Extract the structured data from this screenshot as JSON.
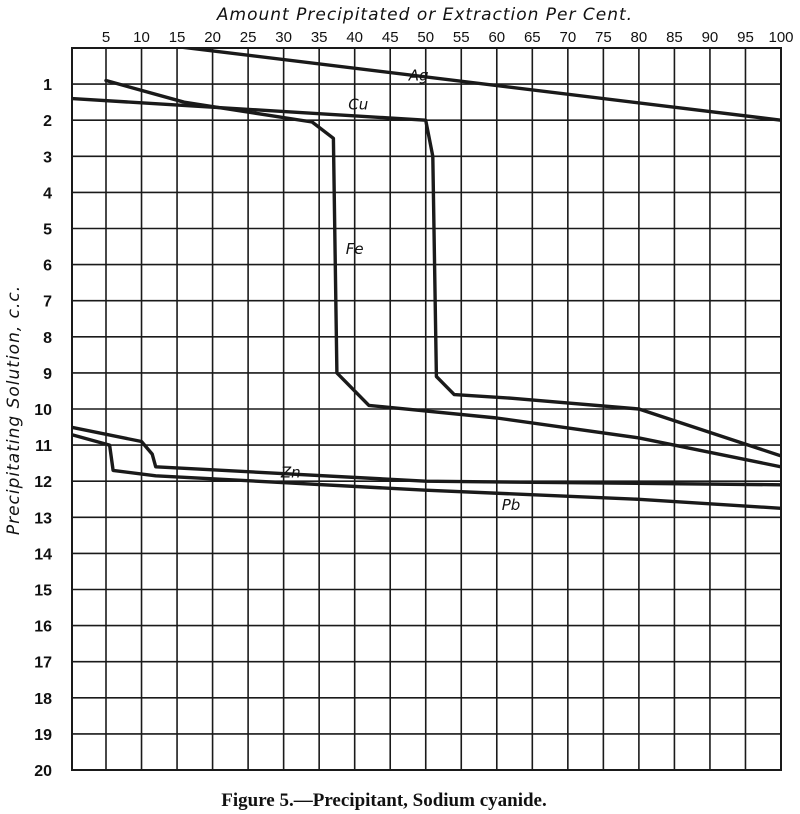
{
  "chart_data": {
    "type": "line",
    "title": "",
    "xlabel": "Amount Precipitated or Extraction Per Cent.",
    "ylabel": "Precipitating Solution, c.c.",
    "caption": "Figure 5.—Precipitant, Sodium cyanide.",
    "x_ticks": [
      5,
      10,
      15,
      20,
      25,
      30,
      35,
      40,
      45,
      50,
      55,
      60,
      65,
      70,
      75,
      80,
      85,
      90,
      95,
      100
    ],
    "y_ticks": [
      1,
      2,
      3,
      4,
      5,
      6,
      7,
      8,
      9,
      10,
      11,
      12,
      13,
      14,
      15,
      16,
      17,
      18,
      19,
      20
    ],
    "xlim": [
      5,
      100
    ],
    "ylim": [
      0,
      20
    ],
    "x_axis_position": "top",
    "y_inverted": true,
    "grid": true,
    "series": [
      {
        "name": "Ag",
        "label_at": [
          49,
          0.9
        ],
        "points": [
          [
            0,
            -0.4
          ],
          [
            100,
            2.0
          ]
        ]
      },
      {
        "name": "Cu",
        "label_at": [
          40.5,
          1.7
        ],
        "points": [
          [
            0,
            1.4
          ],
          [
            50,
            2.0
          ],
          [
            51,
            3.0
          ],
          [
            51.5,
            9.1
          ],
          [
            54,
            9.6
          ],
          [
            62,
            9.7
          ],
          [
            80,
            10.0
          ],
          [
            100,
            11.3
          ]
        ]
      },
      {
        "name": "Fe",
        "label_at": [
          40,
          5.7
        ],
        "points": [
          [
            5,
            0.9
          ],
          [
            16,
            1.5
          ],
          [
            34,
            2.05
          ],
          [
            37,
            2.5
          ],
          [
            37.5,
            9.0
          ],
          [
            42,
            9.9
          ],
          [
            60,
            10.25
          ],
          [
            80,
            10.8
          ],
          [
            100,
            11.6
          ]
        ]
      },
      {
        "name": "Zn",
        "label_at": [
          31,
          11.9
        ],
        "points": [
          [
            0,
            10.5
          ],
          [
            10,
            10.9
          ],
          [
            11.5,
            11.25
          ],
          [
            12,
            11.6
          ],
          [
            50,
            12.0
          ],
          [
            100,
            12.1
          ]
        ]
      },
      {
        "name": "Pb",
        "label_at": [
          62,
          12.8
        ],
        "points": [
          [
            0,
            10.7
          ],
          [
            5.5,
            11.0
          ],
          [
            6,
            11.7
          ],
          [
            12,
            11.85
          ],
          [
            50,
            12.25
          ],
          [
            80,
            12.5
          ],
          [
            100,
            12.75
          ]
        ]
      }
    ]
  }
}
